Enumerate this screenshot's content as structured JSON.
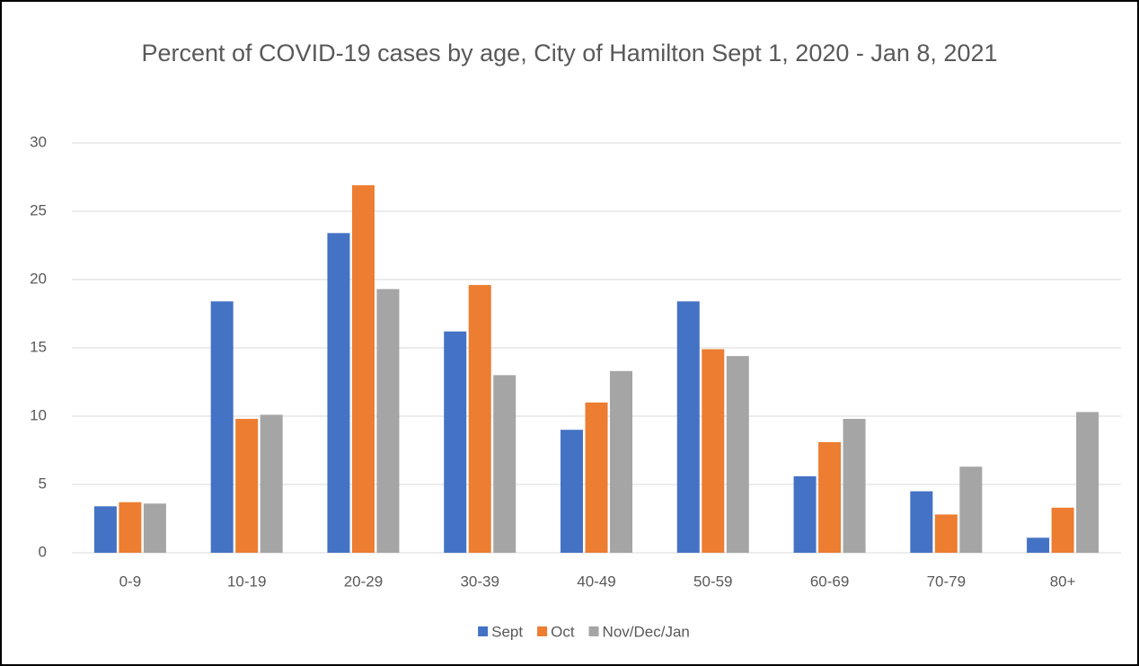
{
  "chart_data": {
    "type": "bar",
    "title": "Percent of COVID-19 cases by age, City of Hamilton Sept 1, 2020 - Jan 8, 2021",
    "categories": [
      "0-9",
      "10-19",
      "20-29",
      "30-39",
      "40-49",
      "50-59",
      "60-69",
      "70-79",
      "80+"
    ],
    "series": [
      {
        "name": "Sept",
        "color": "#4472c4",
        "values": [
          3.4,
          18.4,
          23.4,
          16.2,
          9.0,
          18.4,
          5.6,
          4.5,
          1.1
        ]
      },
      {
        "name": "Oct",
        "color": "#ed7d31",
        "values": [
          3.7,
          9.8,
          26.9,
          19.6,
          11.0,
          14.9,
          8.1,
          2.8,
          3.3
        ]
      },
      {
        "name": "Nov/Dec/Jan",
        "color": "#a5a5a5",
        "values": [
          3.6,
          10.1,
          19.3,
          13.0,
          13.3,
          14.4,
          9.8,
          6.3,
          10.3
        ]
      }
    ],
    "ylim": [
      0,
      30
    ],
    "yticks": [
      0,
      5,
      10,
      15,
      20,
      25,
      30
    ],
    "grid": true,
    "legend": "bottom"
  }
}
